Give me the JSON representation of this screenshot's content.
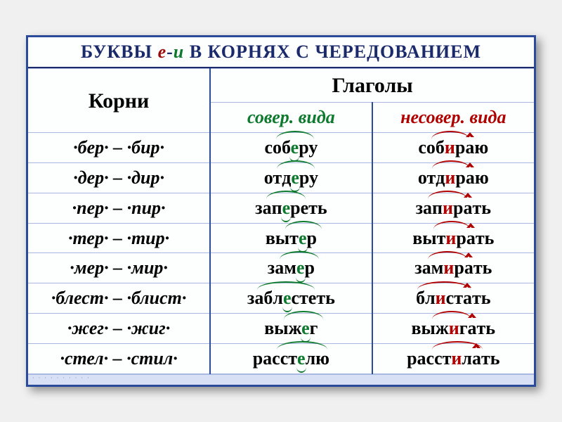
{
  "title": {
    "pre": "БУКВЫ ",
    "e": "е",
    "dash": "-",
    "i": "и",
    "post": " В КОРНЯХ С ЧЕРЕДОВАНИЕМ"
  },
  "headers": {
    "roots": "Корни",
    "verbs": "Глаголы",
    "perfective": "совер. вида",
    "imperfective": "несовер. вида"
  },
  "colors": {
    "frame": "#2a4b9a",
    "green": "#0d7a2e",
    "red": "#b00000",
    "rule": "#a8b8e0",
    "bg": "#fdfefe"
  },
  "rows": [
    {
      "root_e": "бер",
      "root_i": "бир",
      "perf": {
        "pre": "соб",
        "hi": "е",
        "post": "ру",
        "arc_w": 54
      },
      "imp": {
        "pre": "соб",
        "hi": "и",
        "post_a": "р",
        "a": "а",
        "post": "ю",
        "arc_w": 54
      }
    },
    {
      "root_e": "дер",
      "root_i": "дир",
      "perf": {
        "pre": "отд",
        "hi": "е",
        "post": "ру",
        "arc_w": 54
      },
      "imp": {
        "pre": "отд",
        "hi": "и",
        "post_a": "р",
        "a": "а",
        "post": "ю",
        "arc_w": 54
      }
    },
    {
      "root_e": "пер",
      "root_i": "пир",
      "perf": {
        "pre": "зап",
        "hi": "е",
        "post": "реть",
        "arc_w": 56
      },
      "imp": {
        "pre": "зап",
        "hi": "и",
        "post_a": "р",
        "a": "а",
        "post": "ть",
        "arc_w": 56
      }
    },
    {
      "root_e": "тер",
      "root_i": "тир",
      "perf": {
        "pre": "выт",
        "hi": "е",
        "post": "р",
        "arc_w": 52
      },
      "imp": {
        "pre": "выт",
        "hi": "и",
        "post_a": "р",
        "a": "а",
        "post": "ть",
        "arc_w": 52
      }
    },
    {
      "root_e": "мер",
      "root_i": "мир",
      "perf": {
        "pre": "зам",
        "hi": "е",
        "post": "р",
        "arc_w": 56
      },
      "imp": {
        "pre": "зам",
        "hi": "и",
        "post_a": "р",
        "a": "а",
        "post": "ть",
        "arc_w": 56
      }
    },
    {
      "root_e": "блест",
      "root_i": "блист",
      "perf": {
        "pre": "забл",
        "hi": "е",
        "post": "стеть",
        "arc_w": 82
      },
      "imp": {
        "pre": "бл",
        "hi": "и",
        "post_a": "ст",
        "a": "а",
        "post": "ть",
        "arc_w": 76
      }
    },
    {
      "root_e": "жег",
      "root_i": "жиг",
      "perf": {
        "pre": "выж",
        "hi": "е",
        "post": "г",
        "arc_w": 56
      },
      "imp": {
        "pre": "выж",
        "hi": "и",
        "post_a": "г",
        "a": "а",
        "post": "ть",
        "arc_w": 56
      }
    },
    {
      "root_e": "стел",
      "root_i": "стил",
      "perf": {
        "pre": "расст",
        "hi": "е",
        "post": "лю",
        "arc_w": 72
      },
      "imp": {
        "pre": "расст",
        "hi": "и",
        "post_a": "л",
        "a": "а",
        "post": "ть",
        "arc_w": 72
      }
    }
  ]
}
